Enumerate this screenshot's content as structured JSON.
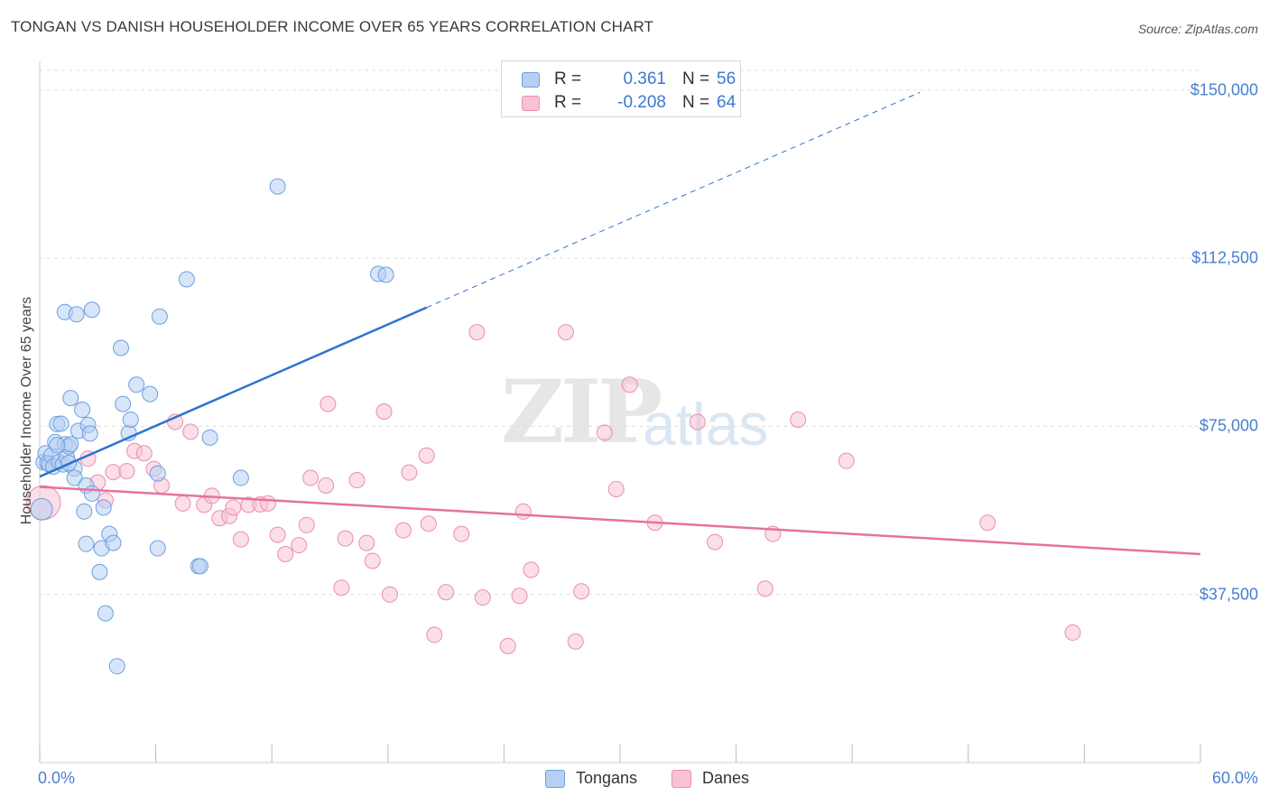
{
  "header": {
    "title": "TONGAN VS DANISH HOUSEHOLDER INCOME OVER 65 YEARS CORRELATION CHART",
    "source": "Source: ZipAtlas.com"
  },
  "watermark": {
    "zip": "ZIP",
    "atlas": "atlas"
  },
  "colors": {
    "tongans_fill": "#b7cff2",
    "tongans_stroke": "#6e9fe0",
    "tongans_line": "#2f72cf",
    "danes_fill": "#f8c2d3",
    "danes_stroke": "#e98fae",
    "danes_line": "#e5739b",
    "grid": "#dddddd",
    "axis_text": "#4a7fd0"
  },
  "legend": {
    "tongans": {
      "r_label": "R =",
      "r_value": "0.361",
      "n_label": "N =",
      "n_value": "56"
    },
    "danes": {
      "r_label": "R =",
      "r_value": "-0.208",
      "n_label": "N =",
      "n_value": "64"
    }
  },
  "chart_data": {
    "type": "scatter",
    "title": "TONGAN VS DANISH HOUSEHOLDER INCOME OVER 65 YEARS CORRELATION CHART",
    "xlabel": "",
    "ylabel": "Householder Income Over 65 years",
    "xlim": [
      0,
      60
    ],
    "ylim": [
      0,
      155000
    ],
    "x_tick_labels": [
      "0.0%",
      "60.0%"
    ],
    "y_ticks": [
      37500,
      75000,
      112500,
      150000
    ],
    "y_tick_labels": [
      "$37,500",
      "$75,000",
      "$112,500",
      "$150,000"
    ],
    "legend_position": "top-center",
    "series": [
      {
        "name": "Tongans",
        "r": 0.361,
        "n": 56,
        "trend": {
          "x0": 0,
          "y0": 63800,
          "x1": 20,
          "y1": 101500,
          "dashed_to_x": 45.5,
          "dashed_to_y": 149500
        },
        "points": [
          [
            0.1,
            56500,
            1.4
          ],
          [
            0.2,
            67000,
            1
          ],
          [
            0.3,
            69000,
            1
          ],
          [
            0.4,
            66800,
            1
          ],
          [
            0.5,
            66500,
            1
          ],
          [
            0.6,
            68500,
            1
          ],
          [
            0.7,
            66000,
            1
          ],
          [
            0.8,
            71500,
            1
          ],
          [
            0.9,
            75500,
            1
          ],
          [
            1.0,
            67000,
            1
          ],
          [
            1.1,
            75600,
            1
          ],
          [
            1.2,
            66500,
            1
          ],
          [
            1.3,
            71000,
            1
          ],
          [
            1.4,
            68000,
            1
          ],
          [
            1.5,
            70500,
            1
          ],
          [
            1.6,
            71000,
            1
          ],
          [
            1.6,
            81300,
            1
          ],
          [
            1.8,
            65600,
            1
          ],
          [
            1.8,
            63500,
            1
          ],
          [
            2.0,
            74000,
            1
          ],
          [
            2.2,
            78700,
            1
          ],
          [
            2.3,
            56000,
            1
          ],
          [
            2.4,
            61800,
            1
          ],
          [
            2.4,
            48800,
            1
          ],
          [
            2.5,
            75300,
            1
          ],
          [
            2.6,
            73400,
            1
          ],
          [
            2.7,
            60000,
            1
          ],
          [
            3.1,
            42500,
            1
          ],
          [
            3.2,
            47800,
            1
          ],
          [
            3.3,
            56900,
            1
          ],
          [
            3.4,
            33300,
            1
          ],
          [
            3.6,
            51000,
            1
          ],
          [
            3.8,
            49000,
            1
          ],
          [
            4.0,
            21500,
            1
          ],
          [
            4.2,
            92500,
            1
          ],
          [
            4.3,
            80000,
            1
          ],
          [
            4.6,
            73500,
            1
          ],
          [
            4.7,
            76500,
            1
          ],
          [
            5.0,
            84300,
            1
          ],
          [
            5.7,
            82200,
            1
          ],
          [
            6.1,
            64500,
            1
          ],
          [
            6.2,
            99500,
            1
          ],
          [
            6.1,
            47800,
            1
          ],
          [
            7.6,
            107800,
            1
          ],
          [
            8.2,
            43800,
            1
          ],
          [
            8.3,
            43800,
            1
          ],
          [
            8.8,
            72500,
            1
          ],
          [
            10.4,
            63500,
            1
          ],
          [
            12.3,
            128500,
            1
          ],
          [
            17.5,
            109000,
            1
          ],
          [
            17.9,
            108800,
            1
          ],
          [
            1.3,
            100500,
            1
          ],
          [
            2.7,
            101000,
            1
          ],
          [
            1.9,
            100000,
            1
          ],
          [
            1.5,
            66800,
            1
          ],
          [
            0.9,
            70800,
            1
          ]
        ]
      },
      {
        "name": "Danes",
        "r": -0.208,
        "n": 64,
        "trend": {
          "x0": 0,
          "y0": 61500,
          "x1": 60,
          "y1": 46500
        },
        "points": [
          [
            0.2,
            58000,
            2.2
          ],
          [
            2.5,
            67800,
            1
          ],
          [
            3.0,
            62500,
            1
          ],
          [
            3.4,
            58500,
            1
          ],
          [
            3.8,
            64800,
            1
          ],
          [
            4.5,
            65000,
            1
          ],
          [
            4.9,
            69500,
            1
          ],
          [
            5.4,
            69000,
            1
          ],
          [
            5.9,
            65500,
            1
          ],
          [
            6.3,
            61800,
            1
          ],
          [
            7.0,
            76000,
            1
          ],
          [
            7.4,
            57800,
            1
          ],
          [
            7.8,
            73800,
            1
          ],
          [
            8.5,
            57500,
            1
          ],
          [
            8.9,
            59500,
            1
          ],
          [
            9.3,
            54500,
            1
          ],
          [
            9.8,
            55000,
            1
          ],
          [
            10.4,
            49800,
            1
          ],
          [
            10.8,
            57500,
            1
          ],
          [
            11.4,
            57600,
            1
          ],
          [
            11.8,
            57800,
            1
          ],
          [
            12.3,
            50800,
            1
          ],
          [
            12.7,
            46500,
            1
          ],
          [
            13.4,
            48500,
            1
          ],
          [
            13.8,
            53000,
            1
          ],
          [
            14.8,
            61800,
            1
          ],
          [
            14.9,
            80000,
            1
          ],
          [
            15.6,
            39000,
            1
          ],
          [
            15.8,
            50000,
            1
          ],
          [
            16.4,
            63000,
            1
          ],
          [
            16.9,
            49000,
            1
          ],
          [
            17.2,
            45000,
            1
          ],
          [
            17.8,
            78300,
            1
          ],
          [
            18.1,
            37500,
            1
          ],
          [
            18.8,
            51800,
            1
          ],
          [
            19.1,
            64700,
            1
          ],
          [
            20.0,
            68500,
            1
          ],
          [
            20.1,
            53300,
            1
          ],
          [
            20.4,
            28500,
            1
          ],
          [
            21.0,
            38000,
            1
          ],
          [
            21.8,
            51000,
            1
          ],
          [
            22.6,
            96000,
            1
          ],
          [
            22.9,
            36800,
            1
          ],
          [
            24.2,
            26000,
            1
          ],
          [
            24.8,
            37200,
            1
          ],
          [
            25.4,
            43000,
            1
          ],
          [
            27.2,
            96000,
            1
          ],
          [
            27.7,
            27000,
            1
          ],
          [
            28.0,
            38200,
            1
          ],
          [
            29.2,
            73600,
            1
          ],
          [
            29.8,
            61000,
            1
          ],
          [
            30.5,
            84300,
            1
          ],
          [
            31.8,
            53500,
            1
          ],
          [
            34.0,
            76000,
            1
          ],
          [
            34.9,
            49200,
            1
          ],
          [
            37.5,
            38800,
            1
          ],
          [
            37.9,
            51000,
            1
          ],
          [
            39.2,
            76500,
            1
          ],
          [
            41.7,
            67300,
            1
          ],
          [
            49.0,
            53500,
            1
          ],
          [
            53.4,
            29000,
            1
          ],
          [
            10.0,
            56900,
            1
          ],
          [
            25.0,
            56000,
            1
          ],
          [
            14.0,
            63500,
            1
          ]
        ]
      }
    ]
  },
  "bottom_legend": {
    "tongans": "Tongans",
    "danes": "Danes"
  }
}
